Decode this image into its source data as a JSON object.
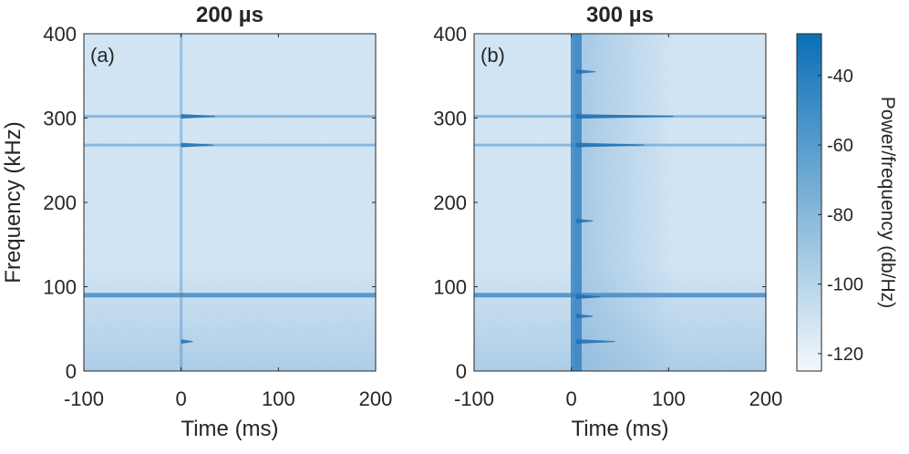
{
  "chart_data": {
    "type": "heatmap",
    "panels": [
      {
        "id": "a",
        "title": "200 µs",
        "panel_label": "(a)",
        "xlabel": "Time (ms)",
        "ylabel": "Frequency (kHz)",
        "xlim": [
          -100,
          200
        ],
        "ylim": [
          0,
          400
        ],
        "xticks": [
          "-100",
          "0",
          "100",
          "200"
        ],
        "yticks": [
          "0",
          "100",
          "200",
          "300",
          "400"
        ],
        "background_lines_khz": [
          90,
          268,
          302
        ],
        "pulse_time_ms": 0,
        "transient_features": [
          {
            "freq_khz": 302,
            "t_end_ms": 35
          },
          {
            "freq_khz": 268,
            "t_end_ms": 33
          },
          {
            "freq_khz": 35,
            "t_end_ms": 12
          }
        ]
      },
      {
        "id": "b",
        "title": "300 µs",
        "panel_label": "(b)",
        "xlabel": "Time (ms)",
        "ylabel": "",
        "xlim": [
          -100,
          200
        ],
        "ylim": [
          0,
          400
        ],
        "xticks": [
          "-100",
          "0",
          "100",
          "200"
        ],
        "yticks": [
          "0",
          "100",
          "200",
          "300",
          "400"
        ],
        "background_lines_khz": [
          90,
          268,
          302
        ],
        "pulse_time_ms": 5,
        "transient_features": [
          {
            "freq_khz": 302,
            "t_end_ms": 105
          },
          {
            "freq_khz": 268,
            "t_end_ms": 75
          },
          {
            "freq_khz": 88,
            "t_end_ms": 30
          },
          {
            "freq_khz": 35,
            "t_end_ms": 45
          },
          {
            "freq_khz": 355,
            "t_end_ms": 25
          },
          {
            "freq_khz": 178,
            "t_end_ms": 22
          },
          {
            "freq_khz": 65,
            "t_end_ms": 22
          }
        ]
      }
    ],
    "colorbar": {
      "label": "Power/frequency (db/Hz)",
      "range": [
        -125,
        -28
      ],
      "ticks": [
        "-40",
        "-60",
        "-80",
        "-100",
        "-120"
      ],
      "colors": [
        "#f3f8fc",
        "#0a6fb5"
      ]
    }
  }
}
